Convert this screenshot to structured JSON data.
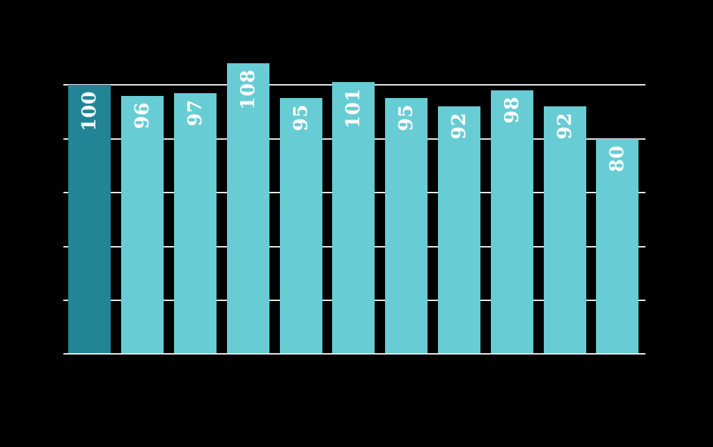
{
  "chart_data": {
    "type": "bar",
    "values": [
      100,
      96,
      97,
      108,
      95,
      101,
      95,
      92,
      98,
      92,
      80
    ],
    "bar_labels": [
      "100",
      "96",
      "97",
      "108",
      "95",
      "101",
      "95",
      "92",
      "98",
      "92",
      "80"
    ],
    "highlight_index": 0,
    "gridline_values": [
      20,
      40,
      60,
      80,
      100
    ],
    "ylim": [
      0,
      110
    ],
    "grid": "on",
    "legend": "none",
    "label_rotation_degrees": -90,
    "colors": {
      "background": "#000000",
      "highlight_bar": "#228595",
      "default_bar": "#68ccd4",
      "grid_line": "#eceff1",
      "axis_line": "#eceff1",
      "label_text": "#ffffff"
    }
  }
}
